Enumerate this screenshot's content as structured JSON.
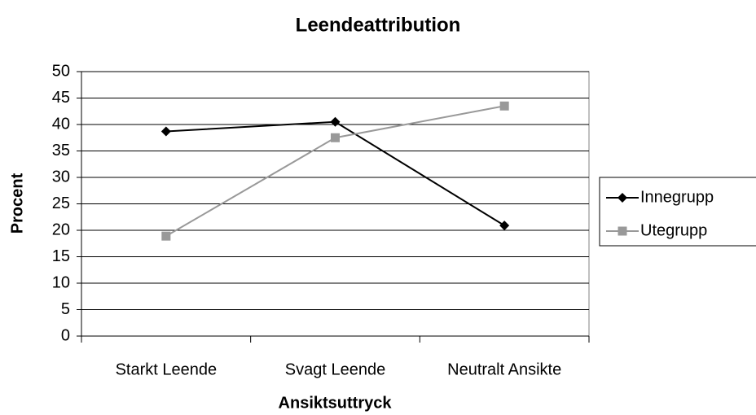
{
  "chart_data": {
    "type": "line",
    "title": "Leendeattribution",
    "x_label": "Ansiktsuttryck",
    "y_label": "Procent",
    "categories": [
      "Starkt Leende",
      "Svagt Leende",
      "Neutralt Ansikte"
    ],
    "series": [
      {
        "name": "Innegrupp",
        "color": "#000000",
        "marker": "diamond",
        "values": [
          38.7,
          40.5,
          20.9
        ]
      },
      {
        "name": "Utegrupp",
        "color": "#999999",
        "marker": "square",
        "values": [
          18.9,
          37.5,
          43.5
        ]
      }
    ],
    "ylim": [
      0,
      50
    ],
    "yticks": [
      0,
      5,
      10,
      15,
      20,
      25,
      30,
      35,
      40,
      45,
      50
    ],
    "grid": true,
    "legend": "right"
  }
}
